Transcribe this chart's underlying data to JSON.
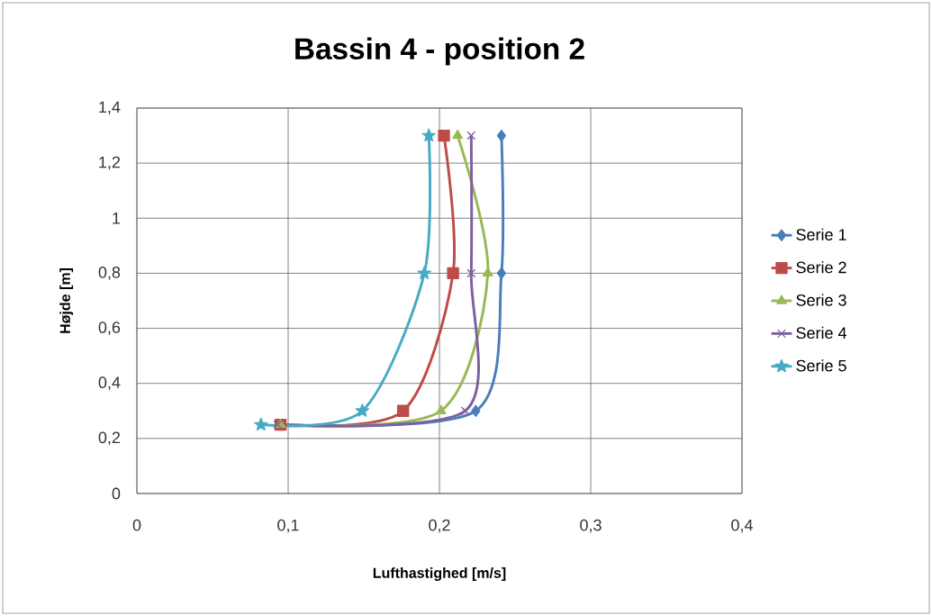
{
  "chart_data": {
    "type": "line",
    "title": "Bassin 4 - position 2",
    "xlabel": "Lufthastighed [m/s]",
    "ylabel": "Højde [m]",
    "xlim": [
      0,
      0.4
    ],
    "ylim": [
      0,
      1.4
    ],
    "xticks": [
      0,
      {
        "value": 0.1,
        "label": "0,1"
      },
      {
        "value": 0.2,
        "label": "0,2"
      },
      {
        "value": 0.3,
        "label": "0,3"
      },
      {
        "value": 0.4,
        "label": "0,4"
      }
    ],
    "yticks": [
      0,
      {
        "value": 0.2,
        "label": "0,2"
      },
      {
        "value": 0.4,
        "label": "0,4"
      },
      {
        "value": 0.6,
        "label": "0,6"
      },
      {
        "value": 0.8,
        "label": "0,8"
      },
      1,
      {
        "value": 1.2,
        "label": "1,2"
      },
      {
        "value": 1.4,
        "label": "1,4"
      }
    ],
    "grid": true,
    "legend": "right",
    "line_style": "solid",
    "series": [
      {
        "name": "Serie 1",
        "color": "#4a7ebb",
        "marker": "diamond",
        "x": [
          0.096,
          0.224,
          0.241,
          0.241
        ],
        "values": [
          0.25,
          0.3,
          0.8,
          1.3
        ]
      },
      {
        "name": "Serie 2",
        "color": "#be4b48",
        "marker": "square",
        "x": [
          0.095,
          0.176,
          0.209,
          0.203
        ],
        "values": [
          0.25,
          0.3,
          0.8,
          1.3
        ]
      },
      {
        "name": "Serie 3",
        "color": "#98b954",
        "marker": "triangle",
        "x": [
          0.095,
          0.201,
          0.232,
          0.212
        ],
        "values": [
          0.25,
          0.3,
          0.8,
          1.3
        ]
      },
      {
        "name": "Serie 4",
        "color": "#7d60a0",
        "marker": "cross",
        "x": [
          0.093,
          0.217,
          0.221,
          0.221
        ],
        "values": [
          0.25,
          0.3,
          0.8,
          1.3
        ]
      },
      {
        "name": "Serie 5",
        "color": "#46aac5",
        "marker": "star",
        "x": [
          0.082,
          0.149,
          0.19,
          0.193
        ],
        "values": [
          0.25,
          0.3,
          0.8,
          1.3
        ]
      }
    ]
  }
}
